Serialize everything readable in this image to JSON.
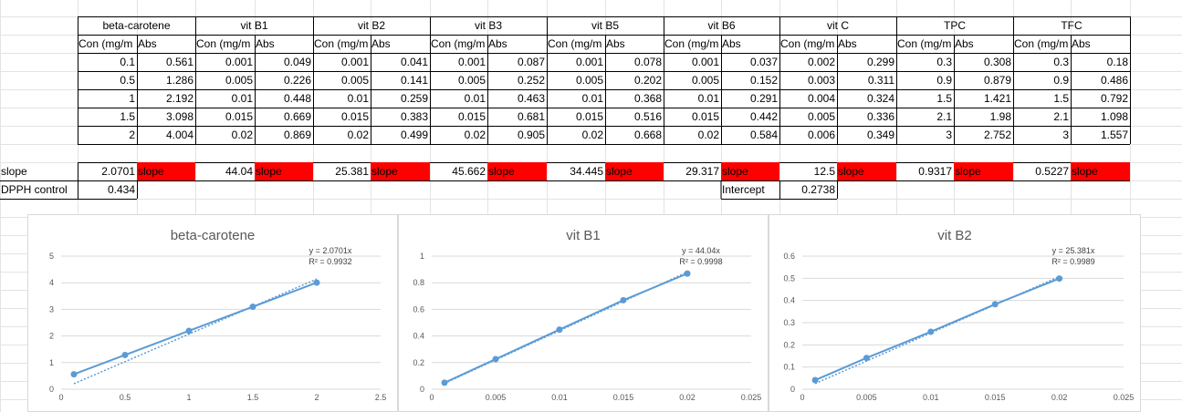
{
  "groups": [
    {
      "name": "beta-carotene",
      "col1": "Con (mg/m",
      "col2": "Abs",
      "con": [
        "0.1",
        "0.5",
        "1",
        "1.5",
        "2"
      ],
      "abs": [
        "0.561",
        "1.286",
        "2.192",
        "3.098",
        "4.004"
      ],
      "slope": "2.0701"
    },
    {
      "name": "vit B1",
      "col1": "Con (mg/m",
      "col2": "Abs",
      "con": [
        "0.001",
        "0.005",
        "0.01",
        "0.015",
        "0.02"
      ],
      "abs": [
        "0.049",
        "0.226",
        "0.448",
        "0.669",
        "0.869"
      ],
      "slope": "44.04"
    },
    {
      "name": "vit B2",
      "col1": "Con (mg/m",
      "col2": "Abs",
      "con": [
        "0.001",
        "0.005",
        "0.01",
        "0.015",
        "0.02"
      ],
      "abs": [
        "0.041",
        "0.141",
        "0.259",
        "0.383",
        "0.499"
      ],
      "slope": "25.381"
    },
    {
      "name": "vit B3",
      "col1": "Con (mg/m",
      "col2": "Abs",
      "con": [
        "0.001",
        "0.005",
        "0.01",
        "0.015",
        "0.02"
      ],
      "abs": [
        "0.087",
        "0.252",
        "0.463",
        "0.681",
        "0.905"
      ],
      "slope": "45.662"
    },
    {
      "name": "vit B5",
      "col1": "Con (mg/m",
      "col2": "Abs",
      "con": [
        "0.001",
        "0.005",
        "0.01",
        "0.015",
        "0.02"
      ],
      "abs": [
        "0.078",
        "0.202",
        "0.368",
        "0.516",
        "0.668"
      ],
      "slope": "34.445"
    },
    {
      "name": "vit B6",
      "col1": "Con (mg/m",
      "col2": "Abs",
      "con": [
        "0.001",
        "0.005",
        "0.01",
        "0.015",
        "0.02"
      ],
      "abs": [
        "0.037",
        "0.152",
        "0.291",
        "0.442",
        "0.584"
      ],
      "slope": "29.317"
    },
    {
      "name": "vit C",
      "col1": "Con (mg/m",
      "col2": "Abs",
      "con": [
        "0.002",
        "0.003",
        "0.004",
        "0.005",
        "0.006"
      ],
      "abs": [
        "0.299",
        "0.311",
        "0.324",
        "0.336",
        "0.349"
      ],
      "slope": "12.5"
    },
    {
      "name": "TPC",
      "col1": "Con (mg/m",
      "col2": "Abs",
      "con": [
        "0.3",
        "0.9",
        "1.5",
        "2.1",
        "3"
      ],
      "abs": [
        "0.308",
        "0.879",
        "1.421",
        "1.98",
        "2.752"
      ],
      "slope": "0.9317"
    },
    {
      "name": "TFC",
      "col1": "Con (mg/m",
      "col2": "Abs",
      "con": [
        "0.3",
        "0.9",
        "1.5",
        "2.1",
        "3"
      ],
      "abs": [
        "0.18",
        "0.486",
        "0.792",
        "1.098",
        "1.557"
      ],
      "slope": "0.5227"
    }
  ],
  "labels": {
    "slope_row": "slope",
    "slope_cell": "slope",
    "dpph_label": "DPPH control",
    "dpph_value": "0.434",
    "intercept_label": "Intercept",
    "intercept_value": "0.2738"
  },
  "chart_data": [
    {
      "type": "scatter",
      "title": "beta-carotene",
      "x": [
        0.1,
        0.5,
        1,
        1.5,
        2
      ],
      "y": [
        0.561,
        1.286,
        2.192,
        3.098,
        4.004
      ],
      "xlim": [
        0,
        2.5
      ],
      "ylim": [
        0,
        5
      ],
      "xticks": [
        "0",
        "0.5",
        "1",
        "1.5",
        "2",
        "2.5"
      ],
      "yticks": [
        "0",
        "1",
        "2",
        "3",
        "4",
        "5"
      ],
      "trendline": {
        "slope": 2.0701
      },
      "equation": "y = 2.0701x",
      "r2": "R² = 0.9932",
      "color": "#5b9bd5"
    },
    {
      "type": "scatter",
      "title": "vit B1",
      "x": [
        0.001,
        0.005,
        0.01,
        0.015,
        0.02
      ],
      "y": [
        0.049,
        0.226,
        0.448,
        0.669,
        0.869
      ],
      "xlim": [
        0,
        0.025
      ],
      "ylim": [
        0,
        1
      ],
      "xticks": [
        "0",
        "0.005",
        "0.01",
        "0.015",
        "0.02",
        "0.025"
      ],
      "yticks": [
        "0",
        "0.2",
        "0.4",
        "0.6",
        "0.8",
        "1"
      ],
      "trendline": {
        "slope": 44.04
      },
      "equation": "y = 44.04x",
      "r2": "R² = 0.9998",
      "color": "#5b9bd5"
    },
    {
      "type": "scatter",
      "title": "vit B2",
      "x": [
        0.001,
        0.005,
        0.01,
        0.015,
        0.02
      ],
      "y": [
        0.041,
        0.141,
        0.259,
        0.383,
        0.499
      ],
      "xlim": [
        0,
        0.025
      ],
      "ylim": [
        0,
        0.6
      ],
      "xticks": [
        "0",
        "0.005",
        "0.01",
        "0.015",
        "0.02",
        "0.025"
      ],
      "yticks": [
        "0",
        "0.1",
        "0.2",
        "0.3",
        "0.4",
        "0.5",
        "0.6"
      ],
      "trendline": {
        "slope": 25.381
      },
      "equation": "y = 25.381x",
      "r2": "R² = 0.9989",
      "color": "#5b9bd5"
    }
  ]
}
